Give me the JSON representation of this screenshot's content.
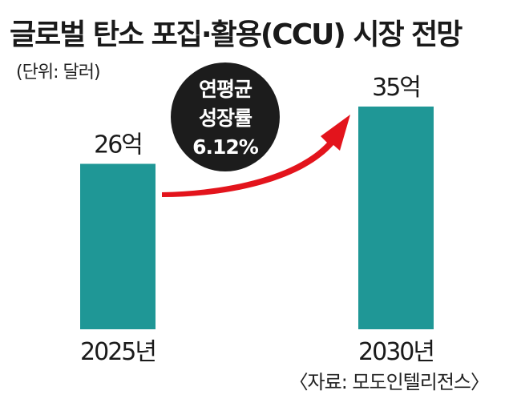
{
  "header": {
    "title": "글로벌 탄소 포집·활용(CCU) 시장 전망",
    "unit": "(단위: 달러)"
  },
  "badge": {
    "lines": [
      "연평균",
      "성장률",
      "6.12%"
    ],
    "color": "#1c1c1c"
  },
  "footer": {
    "source": "〈자료: 모도인텔리전스〉"
  },
  "colors": {
    "bar": "#1f9796",
    "arrow": "#e3141c"
  },
  "chart_data": {
    "type": "bar",
    "categories": [
      "2025년",
      "2030년"
    ],
    "values": [
      26,
      35
    ],
    "value_labels": [
      "26억",
      "35억"
    ],
    "title": "글로벌 탄소 포집·활용(CCU) 시장 전망",
    "ylabel": "",
    "grid": false,
    "legend": "none",
    "ylim": [
      0,
      35
    ]
  }
}
